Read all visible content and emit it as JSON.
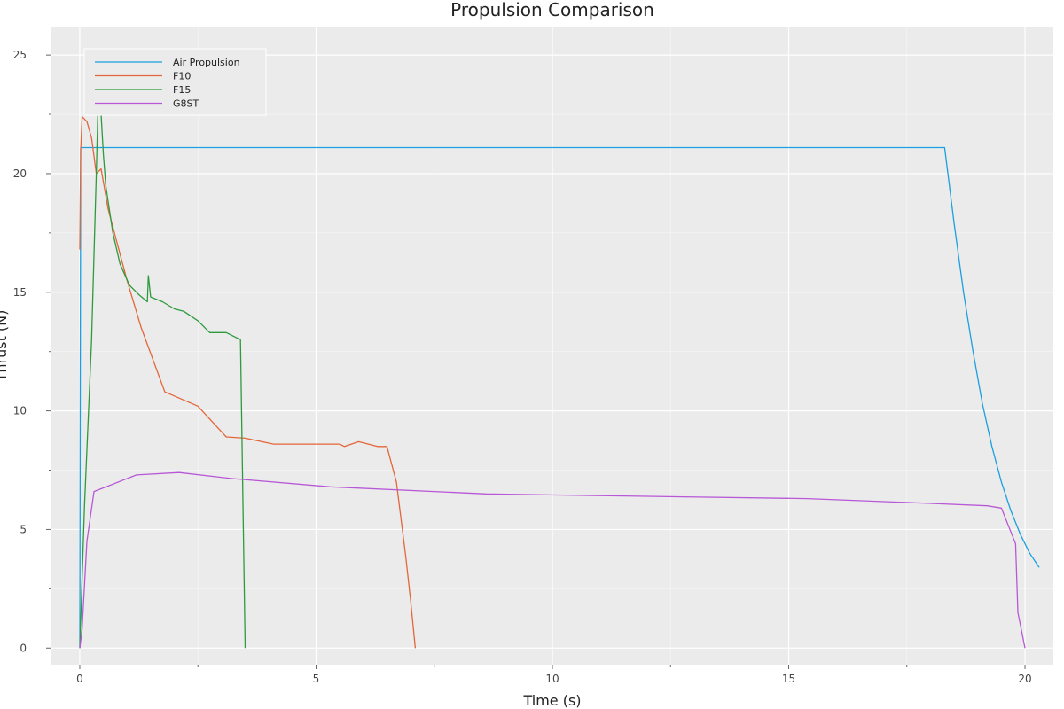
{
  "chart_data": {
    "type": "line",
    "title": "Propulsion Comparison",
    "xlabel": "Time (s)",
    "ylabel": "Thrust (N)",
    "xlim": [
      -0.6,
      20.6
    ],
    "ylim": [
      -0.7,
      26.2
    ],
    "xticks": [
      0,
      5,
      10,
      15,
      20
    ],
    "yticks": [
      0,
      5,
      10,
      15,
      20,
      25
    ],
    "grid": true,
    "legend_position": "top-left",
    "colors": {
      "background": "#ebebeb",
      "grid": "#ffffff"
    },
    "series": [
      {
        "name": "Air Propulsion",
        "color": "#1a9fe0",
        "x": [
          0,
          0.02,
          18.3,
          18.5,
          18.7,
          18.9,
          19.1,
          19.3,
          19.5,
          19.7,
          19.9,
          20.1,
          20.3
        ],
        "y": [
          0,
          21.1,
          21.1,
          17.9,
          15.0,
          12.5,
          10.3,
          8.5,
          7.0,
          5.8,
          4.8,
          4.0,
          3.4
        ]
      },
      {
        "name": "F10",
        "color": "#e3663a",
        "x": [
          0,
          0.02,
          0.05,
          0.15,
          0.25,
          0.35,
          0.45,
          0.6,
          0.8,
          1.0,
          1.3,
          1.8,
          2.5,
          3.1,
          3.5,
          4.1,
          4.7,
          5.5,
          5.6,
          5.9,
          6.3,
          6.5,
          6.7,
          6.9,
          7.0,
          7.1
        ],
        "y": [
          16.8,
          21.0,
          22.4,
          22.2,
          21.5,
          20.0,
          20.2,
          18.5,
          17.0,
          15.5,
          13.5,
          10.8,
          10.2,
          8.9,
          8.85,
          8.6,
          8.6,
          8.6,
          8.5,
          8.7,
          8.5,
          8.5,
          7.0,
          3.8,
          2.0,
          0
        ]
      },
      {
        "name": "F15",
        "color": "#2e9a3e",
        "x": [
          0,
          0.1,
          0.25,
          0.35,
          0.4,
          0.42,
          0.45,
          0.5,
          0.55,
          0.7,
          0.85,
          1.05,
          1.25,
          1.43,
          1.45,
          1.5,
          1.75,
          2.0,
          2.2,
          2.5,
          2.75,
          3.1,
          3.4,
          3.5
        ],
        "y": [
          0,
          6.0,
          13.0,
          20.0,
          24.0,
          25.2,
          22.5,
          20.8,
          19.5,
          17.5,
          16.2,
          15.3,
          14.9,
          14.6,
          15.7,
          14.8,
          14.6,
          14.3,
          14.2,
          13.8,
          13.3,
          13.3,
          13.0,
          0
        ]
      },
      {
        "name": "G8ST",
        "color": "#b858d6",
        "x": [
          0,
          0.05,
          0.15,
          0.3,
          1.2,
          2.1,
          3.2,
          5.3,
          8.6,
          12.0,
          15.4,
          18.0,
          19.2,
          19.5,
          19.8,
          19.85,
          20.0
        ],
        "y": [
          0,
          0.8,
          4.5,
          6.6,
          7.3,
          7.4,
          7.15,
          6.8,
          6.5,
          6.4,
          6.3,
          6.1,
          6.0,
          5.9,
          4.4,
          1.5,
          0
        ]
      }
    ]
  }
}
